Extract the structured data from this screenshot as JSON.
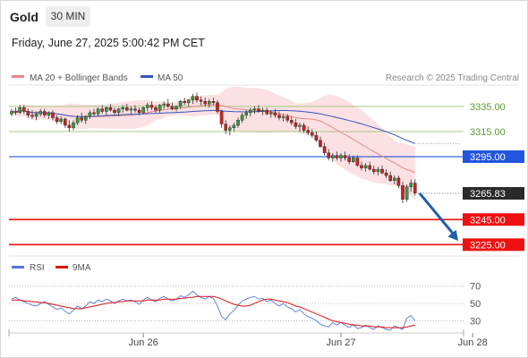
{
  "header": {
    "instrument": "Gold",
    "timeframe": "30 MIN",
    "timestamp": "Friday, June 27, 2025 5:00:42 PM CET"
  },
  "legend": {
    "bollinger": "MA 20 + Bollinger Bands",
    "ma50": "MA 50",
    "credit": "Research © 2025 Trading Central"
  },
  "rsi_legend": {
    "rsi": "RSI",
    "ma9": "9MA"
  },
  "colors": {
    "up": "#3a9a3a",
    "down": "#cc2222",
    "ma50": "#3355bb",
    "ma20": "#e88888",
    "bands": "#f8c8cc",
    "pivot": "#2255dd",
    "support": "#ee1111",
    "resistance": "#a8c880",
    "forecast": "#1f5fa8"
  },
  "chart_data": [
    {
      "type": "candlestick",
      "ylim": [
        3216,
        3352
      ],
      "resistance_levels": [
        {
          "value": 3335.0,
          "label": "3335.00"
        },
        {
          "value": 3315.0,
          "label": "3315.00"
        }
      ],
      "pivot": {
        "value": 3295.0,
        "label": "3295.00"
      },
      "last_price": {
        "value": 3265.83,
        "label": "3265.83"
      },
      "support_levels": [
        {
          "value": 3245.0,
          "label": "3245.00"
        },
        {
          "value": 3225.0,
          "label": "3225.00"
        }
      ],
      "forecast": {
        "from": 3266,
        "to": 3228
      },
      "x_ticks": [
        {
          "index": 32,
          "label": "Jun 26"
        },
        {
          "index": 80,
          "label": "Jun 27"
        },
        {
          "index": 112,
          "label": "Jun 28"
        }
      ],
      "candles": [
        [
          3329,
          3333,
          3327,
          3331
        ],
        [
          3331,
          3334,
          3328,
          3330
        ],
        [
          3330,
          3336,
          3329,
          3334
        ],
        [
          3334,
          3336,
          3329,
          3331
        ],
        [
          3331,
          3333,
          3326,
          3328
        ],
        [
          3328,
          3332,
          3325,
          3327
        ],
        [
          3327,
          3331,
          3324,
          3329
        ],
        [
          3329,
          3333,
          3327,
          3331
        ],
        [
          3331,
          3333,
          3326,
          3328
        ],
        [
          3328,
          3331,
          3325,
          3330
        ],
        [
          3330,
          3332,
          3324,
          3326
        ],
        [
          3326,
          3328,
          3321,
          3323
        ],
        [
          3323,
          3327,
          3321,
          3325
        ],
        [
          3325,
          3326,
          3318,
          3320
        ],
        [
          3320,
          3324,
          3315,
          3318
        ],
        [
          3318,
          3324,
          3316,
          3322
        ],
        [
          3322,
          3328,
          3320,
          3326
        ],
        [
          3326,
          3330,
          3322,
          3324
        ],
        [
          3324,
          3328,
          3321,
          3327
        ],
        [
          3327,
          3332,
          3325,
          3330
        ],
        [
          3330,
          3333,
          3327,
          3329
        ],
        [
          3329,
          3334,
          3327,
          3333
        ],
        [
          3333,
          3336,
          3329,
          3331
        ],
        [
          3331,
          3335,
          3328,
          3334
        ],
        [
          3334,
          3337,
          3331,
          3332
        ],
        [
          3332,
          3334,
          3328,
          3330
        ],
        [
          3330,
          3334,
          3327,
          3333
        ],
        [
          3333,
          3336,
          3330,
          3334
        ],
        [
          3334,
          3337,
          3331,
          3332
        ],
        [
          3332,
          3335,
          3329,
          3333
        ],
        [
          3333,
          3336,
          3330,
          3332
        ],
        [
          3332,
          3334,
          3328,
          3330
        ],
        [
          3330,
          3335,
          3329,
          3334
        ],
        [
          3334,
          3338,
          3331,
          3336
        ],
        [
          3336,
          3339,
          3332,
          3334
        ],
        [
          3334,
          3336,
          3330,
          3332
        ],
        [
          3332,
          3337,
          3330,
          3336
        ],
        [
          3336,
          3339,
          3333,
          3337
        ],
        [
          3337,
          3341,
          3334,
          3335
        ],
        [
          3335,
          3338,
          3332,
          3333
        ],
        [
          3333,
          3336,
          3331,
          3335
        ],
        [
          3335,
          3340,
          3333,
          3339
        ],
        [
          3339,
          3342,
          3336,
          3338
        ],
        [
          3338,
          3341,
          3335,
          3340
        ],
        [
          3340,
          3345,
          3337,
          3343
        ],
        [
          3343,
          3346,
          3338,
          3340
        ],
        [
          3340,
          3343,
          3336,
          3339
        ],
        [
          3339,
          3342,
          3335,
          3337
        ],
        [
          3337,
          3341,
          3334,
          3339
        ],
        [
          3339,
          3342,
          3336,
          3338
        ],
        [
          3338,
          3340,
          3329,
          3331
        ],
        [
          3331,
          3332,
          3318,
          3321
        ],
        [
          3321,
          3324,
          3313,
          3316
        ],
        [
          3316,
          3320,
          3312,
          3318
        ],
        [
          3318,
          3322,
          3315,
          3320
        ],
        [
          3320,
          3326,
          3318,
          3324
        ],
        [
          3324,
          3330,
          3322,
          3328
        ],
        [
          3328,
          3332,
          3325,
          3330
        ],
        [
          3330,
          3334,
          3327,
          3332
        ],
        [
          3332,
          3335,
          3329,
          3333
        ],
        [
          3333,
          3336,
          3330,
          3331
        ],
        [
          3331,
          3334,
          3328,
          3332
        ],
        [
          3332,
          3334,
          3328,
          3329
        ],
        [
          3329,
          3332,
          3326,
          3330
        ],
        [
          3330,
          3333,
          3326,
          3328
        ],
        [
          3328,
          3331,
          3324,
          3326
        ],
        [
          3326,
          3329,
          3323,
          3327
        ],
        [
          3327,
          3329,
          3322,
          3324
        ],
        [
          3324,
          3327,
          3320,
          3322
        ],
        [
          3322,
          3325,
          3317,
          3319
        ],
        [
          3319,
          3322,
          3315,
          3320
        ],
        [
          3320,
          3322,
          3314,
          3316
        ],
        [
          3316,
          3319,
          3312,
          3314
        ],
        [
          3314,
          3317,
          3310,
          3312
        ],
        [
          3312,
          3315,
          3307,
          3308
        ],
        [
          3308,
          3311,
          3302,
          3303
        ],
        [
          3303,
          3306,
          3296,
          3298
        ],
        [
          3298,
          3301,
          3292,
          3294
        ],
        [
          3294,
          3298,
          3291,
          3296
        ],
        [
          3296,
          3299,
          3292,
          3294
        ],
        [
          3294,
          3298,
          3291,
          3296
        ],
        [
          3296,
          3299,
          3292,
          3294
        ],
        [
          3294,
          3297,
          3289,
          3291
        ],
        [
          3291,
          3296,
          3290,
          3294
        ],
        [
          3294,
          3296,
          3287,
          3288
        ],
        [
          3288,
          3291,
          3284,
          3286
        ],
        [
          3286,
          3290,
          3283,
          3288
        ],
        [
          3288,
          3291,
          3284,
          3285
        ],
        [
          3285,
          3288,
          3281,
          3283
        ],
        [
          3283,
          3287,
          3280,
          3285
        ],
        [
          3285,
          3288,
          3281,
          3282
        ],
        [
          3282,
          3285,
          3278,
          3280
        ],
        [
          3280,
          3283,
          3275,
          3276
        ],
        [
          3276,
          3280,
          3273,
          3278
        ],
        [
          3278,
          3280,
          3270,
          3272
        ],
        [
          3272,
          3275,
          3258,
          3261
        ],
        [
          3261,
          3273,
          3259,
          3271
        ],
        [
          3271,
          3277,
          3267,
          3274
        ],
        [
          3274,
          3277,
          3264,
          3266
        ]
      ]
    },
    {
      "type": "line",
      "title": "RSI",
      "ylim": [
        18,
        78
      ],
      "levels": [
        {
          "value": 70,
          "label": "70"
        },
        {
          "value": 50,
          "label": "50"
        },
        {
          "value": 30,
          "label": "30"
        }
      ],
      "series": [
        {
          "name": "RSI",
          "values": [
            55,
            57,
            54,
            52,
            50,
            48,
            47,
            50,
            52,
            49,
            46,
            43,
            45,
            41,
            38,
            42,
            47,
            44,
            47,
            52,
            50,
            54,
            52,
            55,
            53,
            50,
            53,
            55,
            53,
            54,
            52,
            49,
            54,
            57,
            54,
            52,
            56,
            58,
            55,
            53,
            55,
            59,
            57,
            60,
            64,
            60,
            57,
            55,
            58,
            56,
            47,
            35,
            31,
            38,
            42,
            48,
            53,
            55,
            57,
            58,
            55,
            56,
            52,
            54,
            50,
            47,
            50,
            46,
            44,
            40,
            43,
            38,
            35,
            33,
            30,
            26,
            24,
            23,
            28,
            25,
            28,
            25,
            22,
            26,
            21,
            22,
            25,
            22,
            20,
            24,
            22,
            20,
            19,
            24,
            22,
            20,
            33,
            36,
            30
          ]
        },
        {
          "name": "9MA",
          "values": [
            54,
            54,
            54,
            53,
            53,
            52,
            52,
            51,
            51,
            50,
            49,
            48,
            47,
            46,
            45,
            44,
            44,
            44,
            45,
            46,
            47,
            48,
            49,
            50,
            51,
            51,
            52,
            52,
            53,
            53,
            53,
            53,
            53,
            54,
            54,
            54,
            54,
            55,
            55,
            55,
            55,
            56,
            56,
            57,
            57,
            58,
            58,
            58,
            58,
            58,
            57,
            55,
            53,
            51,
            49,
            48,
            47,
            47,
            48,
            50,
            52,
            54,
            55,
            55,
            54,
            53,
            52,
            51,
            49,
            47,
            46,
            44,
            42,
            40,
            38,
            36,
            34,
            32,
            30,
            29,
            28,
            27,
            26,
            25,
            25,
            24,
            24,
            24,
            23,
            23,
            23,
            22,
            22,
            22,
            22,
            22,
            23,
            24,
            25
          ]
        }
      ]
    }
  ]
}
